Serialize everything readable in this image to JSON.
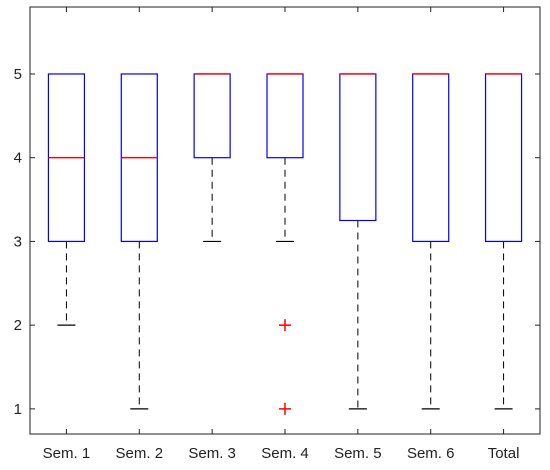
{
  "chart_data": {
    "type": "boxplot",
    "title": "",
    "xlabel": "",
    "ylabel": "",
    "ylim": [
      0.7,
      5.8
    ],
    "yticks": [
      1,
      2,
      3,
      4,
      5
    ],
    "grid": false,
    "categories": [
      "Sem. 1",
      "Sem. 2",
      "Sem. 3",
      "Sem. 4",
      "Sem. 5",
      "Sem. 6",
      "Total"
    ],
    "boxes": [
      {
        "label": "Sem. 1",
        "whisker_low": 2,
        "q1": 3,
        "median": 4,
        "q3": 5,
        "whisker_high": 5,
        "outliers": []
      },
      {
        "label": "Sem. 2",
        "whisker_low": 1,
        "q1": 3,
        "median": 4,
        "q3": 5,
        "whisker_high": 5,
        "outliers": []
      },
      {
        "label": "Sem. 3",
        "whisker_low": 3,
        "q1": 4,
        "median": 5,
        "q3": 5,
        "whisker_high": 5,
        "outliers": []
      },
      {
        "label": "Sem. 4",
        "whisker_low": 3,
        "q1": 4,
        "median": 5,
        "q3": 5,
        "whisker_high": 5,
        "outliers": [
          2,
          1
        ]
      },
      {
        "label": "Sem. 5",
        "whisker_low": 1,
        "q1": 3.25,
        "median": 5,
        "q3": 5,
        "whisker_high": 5,
        "outliers": []
      },
      {
        "label": "Sem. 6",
        "whisker_low": 1,
        "q1": 3,
        "median": 5,
        "q3": 5,
        "whisker_high": 5,
        "outliers": []
      },
      {
        "label": "Total",
        "whisker_low": 1,
        "q1": 3,
        "median": 5,
        "q3": 5,
        "whisker_high": 5,
        "outliers": []
      }
    ],
    "colors": {
      "box": "#0000ff",
      "median": "#ff0000",
      "whisker": "#000000",
      "outlier": "#ff0000",
      "axes": "#222222"
    }
  }
}
